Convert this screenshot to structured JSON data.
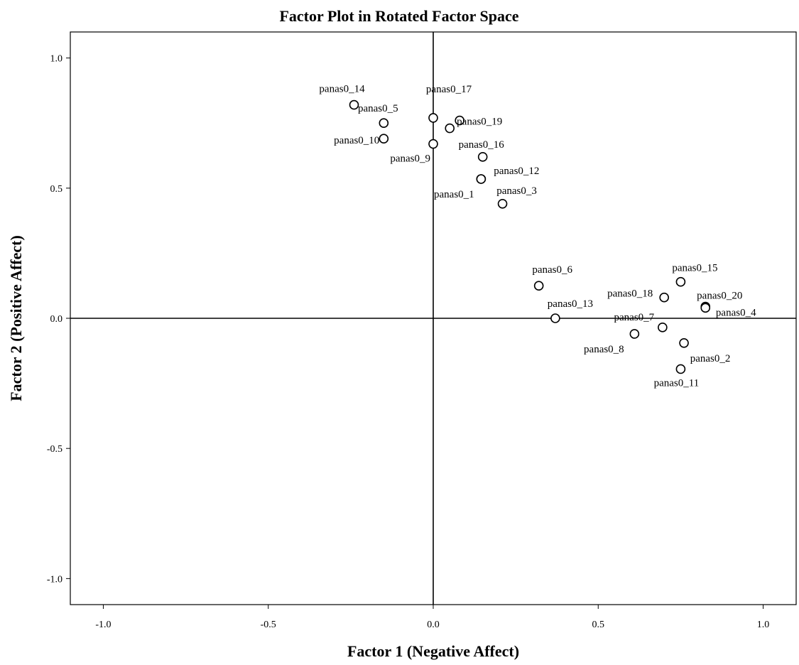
{
  "chart_data": {
    "type": "scatter",
    "title": "Factor Plot in Rotated Factor Space",
    "xlabel": "Factor 1 (Negative Affect)",
    "ylabel": "Factor 2 (Positive Affect)",
    "xlim": [
      -1.1,
      1.1
    ],
    "ylim": [
      -1.1,
      1.1
    ],
    "x_ticks": [
      -1.0,
      -0.5,
      0.0,
      0.5,
      1.0
    ],
    "y_ticks": [
      1.0,
      0.5,
      0.0,
      -0.5,
      -1.0
    ],
    "x_tick_labels": [
      "-1.0",
      "-0.5",
      "0.0",
      "0.5",
      "1.0"
    ],
    "y_tick_labels": [
      "1.0",
      "0.5",
      "0.0",
      "-0.5",
      "-1.0"
    ],
    "grid": false,
    "reference_lines": {
      "x": 0.0,
      "y": 0.0
    },
    "points": [
      {
        "label": "panas0_14",
        "x": -0.24,
        "y": 0.82
      },
      {
        "label": "panas0_5",
        "x": -0.15,
        "y": 0.75
      },
      {
        "label": "panas0_10",
        "x": -0.15,
        "y": 0.69
      },
      {
        "label": "panas0_17",
        "x": 0.0,
        "y": 0.77
      },
      {
        "label": "panas0_9",
        "x": 0.0,
        "y": 0.67
      },
      {
        "label": "panas0_19",
        "x": 0.05,
        "y": 0.73
      },
      {
        "label": "panas0_19",
        "x": 0.08,
        "y": 0.76
      },
      {
        "label": "panas0_16",
        "x": 0.15,
        "y": 0.62
      },
      {
        "label": "panas0_12",
        "x": 0.145,
        "y": 0.535
      },
      {
        "label": "panas0_1",
        "x": 0.145,
        "y": 0.535
      },
      {
        "label": "panas0_3",
        "x": 0.21,
        "y": 0.44
      },
      {
        "label": "panas0_6",
        "x": 0.32,
        "y": 0.125
      },
      {
        "label": "panas0_13",
        "x": 0.37,
        "y": 0.0
      },
      {
        "label": "panas0_18",
        "x": 0.7,
        "y": 0.08
      },
      {
        "label": "panas0_15",
        "x": 0.75,
        "y": 0.14
      },
      {
        "label": "panas0_20",
        "x": 0.825,
        "y": 0.045
      },
      {
        "label": "panas0_4",
        "x": 0.825,
        "y": 0.04
      },
      {
        "label": "panas0_7",
        "x": 0.695,
        "y": -0.035
      },
      {
        "label": "panas0_8",
        "x": 0.61,
        "y": -0.06
      },
      {
        "label": "panas0_2",
        "x": 0.76,
        "y": -0.095
      },
      {
        "label": "panas0_11",
        "x": 0.75,
        "y": -0.195
      }
    ]
  }
}
